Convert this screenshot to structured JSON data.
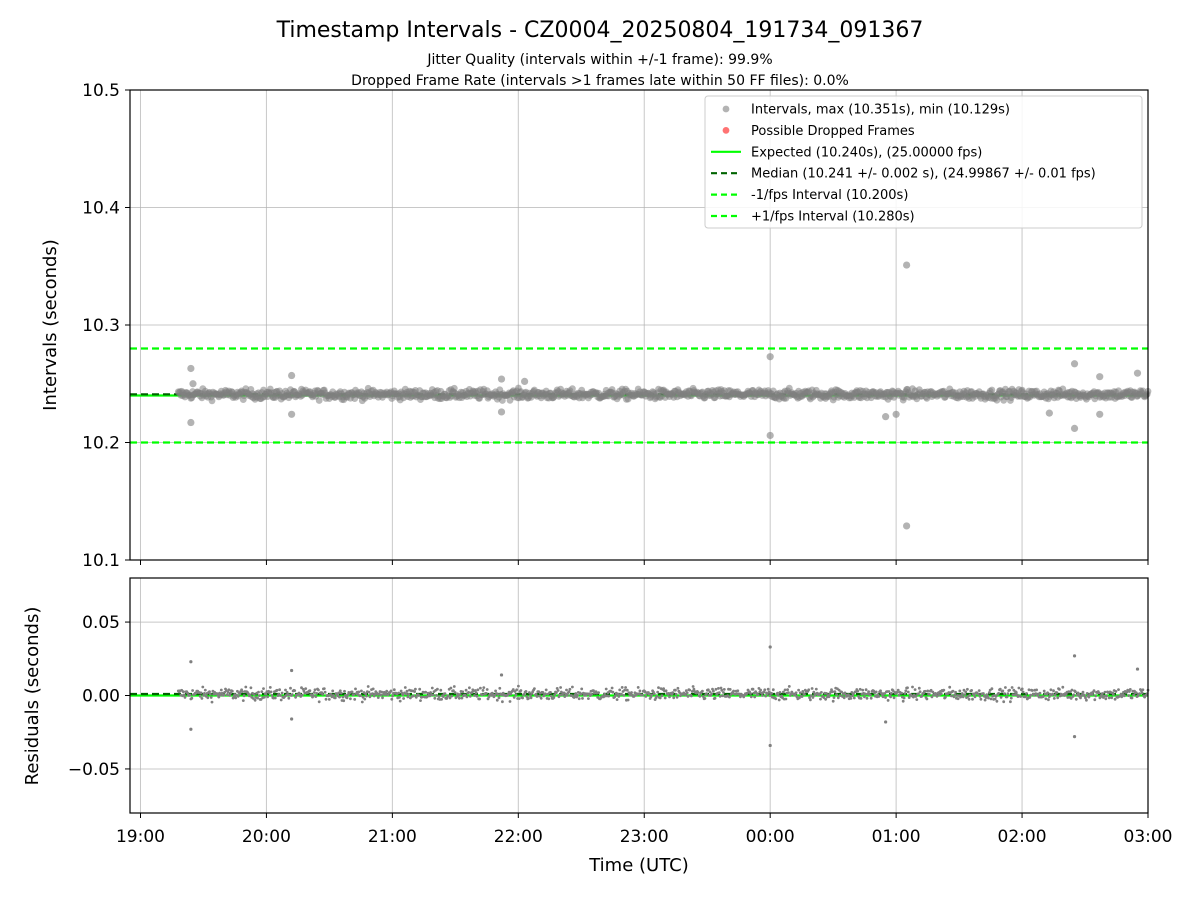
{
  "figure": {
    "title": "Timestamp Intervals - CZ0004_20250804_191734_091367",
    "subtitle_line1": "Jitter Quality (intervals within +/-1 frame): 99.9%",
    "subtitle_line2": "Dropped Frame Rate (intervals >1 frames late within 50 FF files): 0.0%"
  },
  "colors": {
    "intervals": "#808080",
    "dropped": "#ff0000",
    "expected": "#00ff00",
    "median": "#006400",
    "fps_bounds": "#00ff00",
    "grid": "#b0b0b0"
  },
  "chart_data": [
    {
      "type": "scatter",
      "panel": "intervals",
      "xlabel": "",
      "ylabel": "Intervals (seconds)",
      "ylim": [
        10.1,
        10.5
      ],
      "yticks": [
        10.1,
        10.2,
        10.3,
        10.4,
        10.5
      ],
      "ytick_labels": [
        "10.1",
        "10.2",
        "10.3",
        "10.4",
        "10.5"
      ],
      "xlim": [
        "18:55",
        "03:00"
      ],
      "xticks": [
        "19:00",
        "20:00",
        "21:00",
        "22:00",
        "23:00",
        "00:00",
        "01:00",
        "02:00",
        "03:00"
      ],
      "grid": true,
      "legend_position": "top-right",
      "data_range": {
        "start": "19:18",
        "end": "03:00",
        "approx_points": 1150
      },
      "series": [
        {
          "name": "Intervals, max (10.351s), min (10.129s)",
          "kind": "points",
          "color": "#808080"
        },
        {
          "name": "Possible Dropped Frames",
          "kind": "points",
          "color": "#ff0000",
          "values": []
        },
        {
          "name": "Expected (10.240s), (25.00000 fps)",
          "kind": "hline",
          "y": 10.24,
          "color": "#00ff00",
          "style": "solid"
        },
        {
          "name": "Median (10.241 +/- 0.002 s), (24.99867 +/- 0.01 fps)",
          "kind": "hline",
          "y": 10.241,
          "color": "#006400",
          "style": "dashed"
        },
        {
          "name": "-1/fps Interval (10.200s)",
          "kind": "hline",
          "y": 10.2,
          "color": "#00ff00",
          "style": "dashed"
        },
        {
          "name": "+1/fps Interval (10.280s)",
          "kind": "hline",
          "y": 10.28,
          "color": "#00ff00",
          "style": "dashed"
        }
      ],
      "notable_points": [
        {
          "x": "19:24",
          "y": 10.263
        },
        {
          "x": "19:24",
          "y": 10.217
        },
        {
          "x": "19:25",
          "y": 10.25
        },
        {
          "x": "20:12",
          "y": 10.257
        },
        {
          "x": "20:12",
          "y": 10.224
        },
        {
          "x": "21:52",
          "y": 10.254
        },
        {
          "x": "21:52",
          "y": 10.226
        },
        {
          "x": "22:03",
          "y": 10.252
        },
        {
          "x": "00:00",
          "y": 10.273
        },
        {
          "x": "00:00",
          "y": 10.206
        },
        {
          "x": "00:55",
          "y": 10.222
        },
        {
          "x": "01:00",
          "y": 10.224
        },
        {
          "x": "01:05",
          "y": 10.351
        },
        {
          "x": "01:05",
          "y": 10.129
        },
        {
          "x": "02:13",
          "y": 10.225
        },
        {
          "x": "02:25",
          "y": 10.267
        },
        {
          "x": "02:25",
          "y": 10.212
        },
        {
          "x": "02:37",
          "y": 10.256
        },
        {
          "x": "02:37",
          "y": 10.224
        },
        {
          "x": "02:55",
          "y": 10.259
        }
      ]
    },
    {
      "type": "scatter",
      "panel": "residuals",
      "xlabel": "Time (UTC)",
      "ylabel": "Residuals (seconds)",
      "ylim": [
        -0.08,
        0.08
      ],
      "yticks": [
        -0.05,
        0.0,
        0.05
      ],
      "ytick_labels": [
        "−0.05",
        "0.00",
        "0.05"
      ],
      "xlim": [
        "18:55",
        "03:00"
      ],
      "xticks": [
        "19:00",
        "20:00",
        "21:00",
        "22:00",
        "23:00",
        "00:00",
        "01:00",
        "02:00",
        "03:00"
      ],
      "grid": true,
      "series": [
        {
          "kind": "points",
          "color": "#808080"
        },
        {
          "kind": "hline",
          "y": 0.0,
          "color": "#00ff00",
          "style": "solid"
        },
        {
          "kind": "hline",
          "y": 0.001,
          "color": "#006400",
          "style": "dashed"
        }
      ],
      "notable_points": [
        {
          "x": "19:24",
          "y": 0.023
        },
        {
          "x": "19:24",
          "y": -0.023
        },
        {
          "x": "20:12",
          "y": 0.017
        },
        {
          "x": "20:12",
          "y": -0.016
        },
        {
          "x": "21:52",
          "y": 0.014
        },
        {
          "x": "00:00",
          "y": 0.033
        },
        {
          "x": "00:00",
          "y": -0.034
        },
        {
          "x": "00:55",
          "y": -0.018
        },
        {
          "x": "02:25",
          "y": 0.027
        },
        {
          "x": "02:25",
          "y": -0.028
        },
        {
          "x": "02:55",
          "y": 0.018
        }
      ]
    }
  ]
}
